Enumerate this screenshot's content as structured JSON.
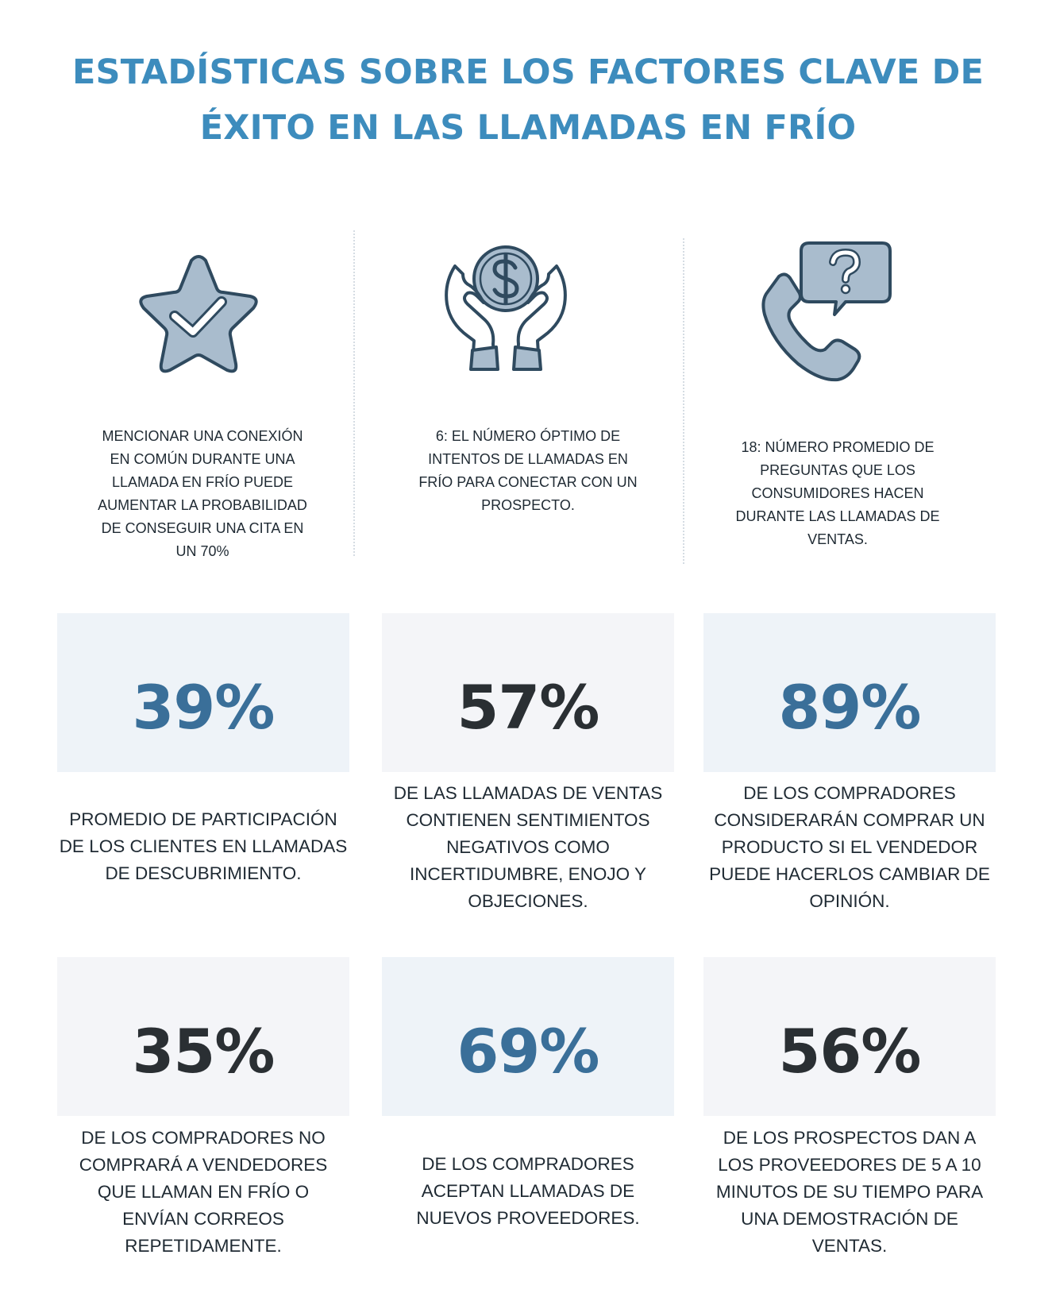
{
  "title": {
    "line1": "ESTADÍSTICAS SOBRE LOS FACTORES CLAVE DE",
    "line2": "ÉXITO EN LAS LLAMADAS EN FRÍO"
  },
  "colors": {
    "title": "#3d8cbd",
    "icon_fill": "#a9bccd",
    "icon_stroke": "#2f4a5f",
    "stat_blue": "#3a6f99",
    "stat_dark": "#2a2f33",
    "card_band_blue": "#eef3f8",
    "card_band_grey": "#f4f5f8"
  },
  "facts": [
    {
      "icon": "star-check-icon",
      "lines": [
        "MENCIONAR UNA CONEXIÓN",
        "EN COMÚN DURANTE UNA",
        "LLAMADA EN FRÍO PUEDE",
        "AUMENTAR LA PROBABILIDAD",
        "DE CONSEGUIR UNA CITA EN",
        "UN 70%"
      ]
    },
    {
      "icon": "hands-dollar-coin-icon",
      "lines": [
        "6: EL NÚMERO ÓPTIMO DE",
        "INTENTOS DE LLAMADAS EN",
        "FRÍO PARA CONECTAR CON UN",
        "PROSPECTO."
      ]
    },
    {
      "icon": "phone-question-bubble-icon",
      "lines": [
        "18: NÚMERO PROMEDIO DE",
        "PREGUNTAS QUE LOS",
        "CONSUMIDORES HACEN",
        "DURANTE LAS LLAMADAS DE",
        "VENTAS."
      ]
    }
  ],
  "stats": [
    {
      "value": "39%",
      "lines": [
        "PROMEDIO DE PARTICIPACIÓN",
        "DE LOS CLIENTES EN LLAMADAS",
        "DE DESCUBRIMIENTO."
      ]
    },
    {
      "value": "57%",
      "lines": [
        "DE LAS LLAMADAS DE VENTAS",
        "CONTIENEN SENTIMIENTOS",
        "NEGATIVOS COMO",
        "INCERTIDUMBRE, ENOJO Y",
        "OBJECIONES."
      ]
    },
    {
      "value": "89%",
      "lines": [
        "DE LOS COMPRADORES",
        "CONSIDERARÁN COMPRAR UN",
        "PRODUCTO SI EL VENDEDOR",
        "PUEDE HACERLOS CAMBIAR DE",
        "OPINIÓN."
      ]
    },
    {
      "value": "35%",
      "lines": [
        "DE LOS COMPRADORES NO",
        "COMPRARÁ A VENDEDORES",
        "QUE LLAMAN EN FRÍO O",
        "ENVÍAN CORREOS",
        "REPETIDAMENTE."
      ]
    },
    {
      "value": "69%",
      "lines": [
        "DE LOS COMPRADORES",
        "ACEPTAN LLAMADAS DE",
        "NUEVOS PROVEEDORES."
      ]
    },
    {
      "value": "56%",
      "lines": [
        "DE LOS PROSPECTOS DAN A",
        "LOS PROVEEDORES DE 5 A 10",
        "MINUTOS DE SU TIEMPO PARA",
        "UNA DEMOSTRACIÓN DE",
        "VENTAS."
      ]
    }
  ]
}
